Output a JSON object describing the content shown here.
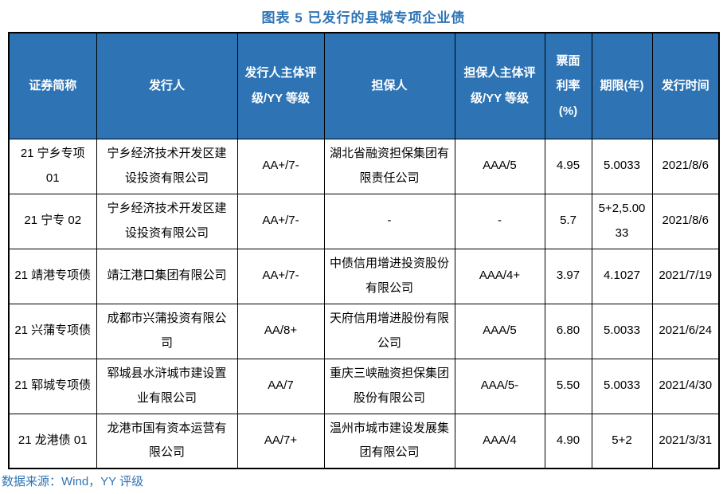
{
  "title": "图表 5 已发行的县城专项企业债",
  "table": {
    "headers": [
      "证券简称",
      "发行人",
      "发行人主体评级/YY 等级",
      "担保人",
      "担保人主体评级/YY 等级",
      "票面利率(%)",
      "期限(年)",
      "发行时间"
    ],
    "rows": [
      [
        "21 宁乡专项 01",
        "宁乡经济技术开发区建设投资有限公司",
        "AA+/7-",
        "湖北省融资担保集团有限责任公司",
        "AAA/5",
        "4.95",
        "5.0033",
        "2021/8/6"
      ],
      [
        "21 宁专 02",
        "宁乡经济技术开发区建设投资有限公司",
        "AA+/7-",
        "-",
        "-",
        "5.7",
        "5+2,5.0033",
        "2021/8/6"
      ],
      [
        "21 靖港专项债",
        "靖江港口集团有限公司",
        "AA+/7-",
        "中债信用增进投资股份有限公司",
        "AAA/4+",
        "3.97",
        "4.1027",
        "2021/7/19"
      ],
      [
        "21 兴蒲专项债",
        "成都市兴蒲投资有限公司",
        "AA/8+",
        "天府信用增进股份有限公司",
        "AAA/5",
        "6.80",
        "5.0033",
        "2021/6/24"
      ],
      [
        "21 郓城专项债",
        "郓城县水浒城市建设置业有限公司",
        "AA/7",
        "重庆三峡融资担保集团股份有限公司",
        "AAA/5-",
        "5.50",
        "5.0033",
        "2021/4/30"
      ],
      [
        "21 龙港债 01",
        "龙港市国有资本运营有限公司",
        "AA/7+",
        "温州市城市建设发展集团有限公司",
        "AAA/4",
        "4.90",
        "5+2",
        "2021/3/31"
      ]
    ]
  },
  "source": "数据来源：Wind，YY 评级",
  "colors": {
    "accent_blue": "#2E74B5",
    "header_bg": "#2E74B5",
    "header_text": "#FFFFFF",
    "border": "#000000"
  }
}
